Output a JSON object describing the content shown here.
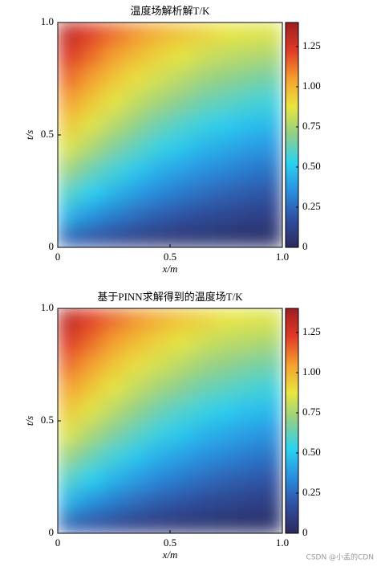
{
  "chart_data": [
    {
      "type": "heatmap",
      "title": "温度场解析解T/K",
      "xlabel": "x/m",
      "ylabel": "t/s",
      "x": [
        0.05,
        0.15,
        0.25,
        0.35,
        0.45,
        0.55,
        0.65,
        0.75,
        0.85,
        0.95
      ],
      "y": [
        0.05,
        0.15,
        0.25,
        0.35,
        0.45,
        0.55,
        0.65,
        0.75,
        0.85,
        0.95
      ],
      "z": [
        [
          0.24,
          0.19,
          0.15,
          0.11,
          0.09,
          0.07,
          0.06,
          0.05,
          0.04,
          0.03
        ],
        [
          0.45,
          0.37,
          0.31,
          0.26,
          0.22,
          0.19,
          0.16,
          0.14,
          0.12,
          0.11
        ],
        [
          0.6,
          0.52,
          0.45,
          0.39,
          0.34,
          0.3,
          0.26,
          0.23,
          0.21,
          0.19
        ],
        [
          0.73,
          0.64,
          0.57,
          0.5,
          0.44,
          0.4,
          0.36,
          0.33,
          0.3,
          0.28
        ],
        [
          0.85,
          0.76,
          0.68,
          0.61,
          0.55,
          0.5,
          0.45,
          0.42,
          0.39,
          0.37
        ],
        [
          0.95,
          0.86,
          0.78,
          0.71,
          0.64,
          0.59,
          0.55,
          0.51,
          0.48,
          0.46
        ],
        [
          1.05,
          0.96,
          0.87,
          0.8,
          0.74,
          0.69,
          0.64,
          0.61,
          0.58,
          0.56
        ],
        [
          1.14,
          1.05,
          0.96,
          0.89,
          0.83,
          0.78,
          0.73,
          0.7,
          0.67,
          0.65
        ],
        [
          1.23,
          1.14,
          1.05,
          0.98,
          0.92,
          0.87,
          0.82,
          0.79,
          0.77,
          0.75
        ],
        [
          1.31,
          1.22,
          1.14,
          1.07,
          1.01,
          0.96,
          0.92,
          0.88,
          0.86,
          0.85
        ]
      ],
      "xlim": [
        0,
        1
      ],
      "ylim": [
        0,
        1
      ],
      "xticks": [
        0,
        0.5,
        {
          "value": 1,
          "label": "1.0"
        }
      ],
      "yticks": [
        0,
        0.5,
        {
          "value": 1,
          "label": "1.0"
        }
      ],
      "clim": [
        0,
        1.4
      ],
      "cticks": [
        0,
        0.25,
        {
          "value": 0.5,
          "label": "0.50"
        },
        0.75,
        {
          "value": 1,
          "label": "1.00"
        },
        1.25
      ],
      "colormap": [
        "#2b2a5c",
        "#2f4fa0",
        "#2a8ee0",
        "#2ad3f0",
        "#8ecf8a",
        "#e8e640",
        "#f5a030",
        "#e03a25",
        "#9e1e22"
      ]
    },
    {
      "type": "heatmap",
      "title": "基于PINN求解得到的温度场T/K",
      "xlabel": "x/m",
      "ylabel": "t/s",
      "x": [
        0.05,
        0.15,
        0.25,
        0.35,
        0.45,
        0.55,
        0.65,
        0.75,
        0.85,
        0.95
      ],
      "y": [
        0.05,
        0.15,
        0.25,
        0.35,
        0.45,
        0.55,
        0.65,
        0.75,
        0.85,
        0.95
      ],
      "z": [
        [
          0.24,
          0.19,
          0.15,
          0.11,
          0.09,
          0.07,
          0.06,
          0.05,
          0.04,
          0.03
        ],
        [
          0.45,
          0.37,
          0.31,
          0.26,
          0.22,
          0.19,
          0.16,
          0.14,
          0.12,
          0.11
        ],
        [
          0.6,
          0.52,
          0.45,
          0.39,
          0.34,
          0.3,
          0.26,
          0.23,
          0.21,
          0.19
        ],
        [
          0.73,
          0.64,
          0.57,
          0.5,
          0.44,
          0.4,
          0.36,
          0.33,
          0.3,
          0.28
        ],
        [
          0.85,
          0.76,
          0.68,
          0.61,
          0.55,
          0.5,
          0.45,
          0.42,
          0.39,
          0.37
        ],
        [
          0.95,
          0.86,
          0.78,
          0.71,
          0.64,
          0.59,
          0.55,
          0.51,
          0.48,
          0.46
        ],
        [
          1.05,
          0.96,
          0.87,
          0.8,
          0.74,
          0.69,
          0.64,
          0.61,
          0.58,
          0.56
        ],
        [
          1.14,
          1.05,
          0.96,
          0.89,
          0.83,
          0.78,
          0.73,
          0.7,
          0.67,
          0.65
        ],
        [
          1.23,
          1.14,
          1.05,
          0.98,
          0.92,
          0.87,
          0.82,
          0.79,
          0.77,
          0.75
        ],
        [
          1.31,
          1.22,
          1.14,
          1.07,
          1.01,
          0.96,
          0.92,
          0.88,
          0.86,
          0.85
        ]
      ],
      "xlim": [
        0,
        1
      ],
      "ylim": [
        0,
        1
      ],
      "xticks": [
        0,
        0.5,
        {
          "value": 1,
          "label": "1.0"
        }
      ],
      "yticks": [
        0,
        0.5,
        {
          "value": 1,
          "label": "1.0"
        }
      ],
      "clim": [
        0,
        1.4
      ],
      "cticks": [
        0,
        0.25,
        {
          "value": 0.5,
          "label": "0.50"
        },
        0.75,
        {
          "value": 1,
          "label": "1.00"
        },
        1.25
      ],
      "colormap": [
        "#2b2a5c",
        "#2f4fa0",
        "#2a8ee0",
        "#2ad3f0",
        "#8ecf8a",
        "#e8e640",
        "#f5a030",
        "#e03a25",
        "#9e1e22"
      ]
    }
  ],
  "watermark": "CSDN @小孟的CDN"
}
